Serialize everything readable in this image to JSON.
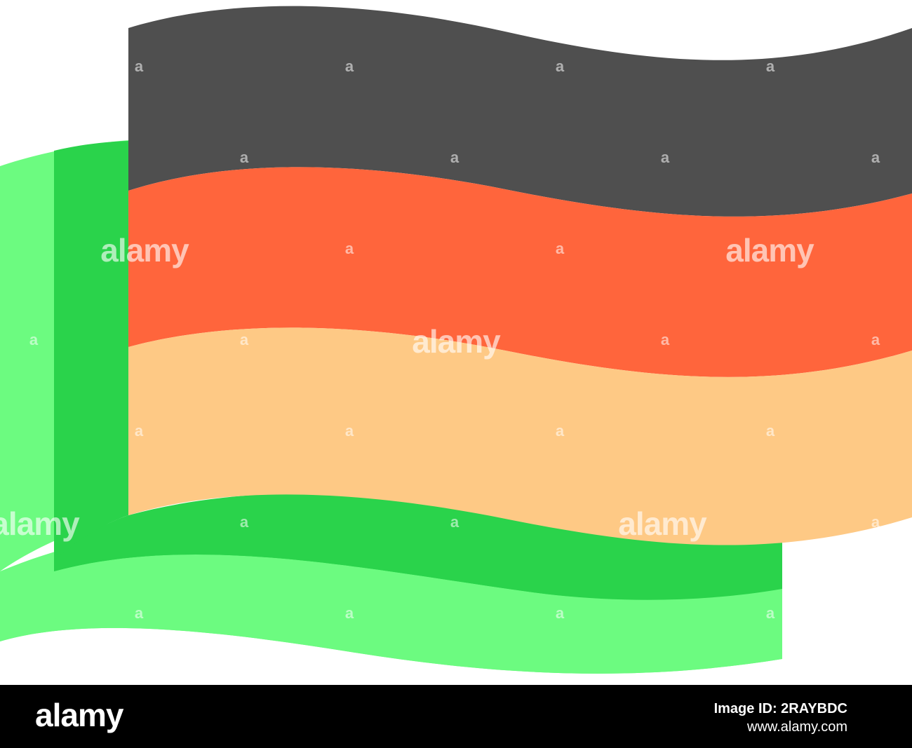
{
  "flag": {
    "colors": {
      "band_top": "#4f4f4f",
      "band_middle": "#ff653c",
      "band_bottom": "#fec985",
      "pole_dark_green": "#2ad34b",
      "pole_light_green": "#6cfb80",
      "background": "#ffffff"
    }
  },
  "watermark": {
    "small_text": "a",
    "big_text": "alamy"
  },
  "footer": {
    "logo": "alamy",
    "image_id": "Image ID: 2RAYBDC",
    "url": "www.alamy.com",
    "background": "#000000"
  }
}
